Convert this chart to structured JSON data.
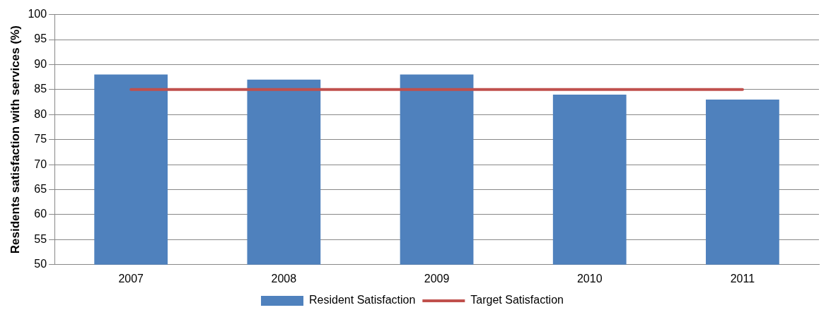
{
  "chart_data": {
    "type": "bar",
    "ylabel": "Residents satisfaction with services (%)",
    "categories": [
      "2007",
      "2008",
      "2009",
      "2010",
      "2011"
    ],
    "series": [
      {
        "name": "Resident Satisfaction",
        "color": "#4f81bd",
        "values": [
          88,
          87,
          88,
          84,
          83
        ]
      },
      {
        "name": "Target Satisfaction",
        "type": "line",
        "color": "#c0504d",
        "values": [
          85,
          85,
          85,
          85,
          85
        ]
      }
    ],
    "ylim": [
      50,
      100
    ],
    "yticks": [
      50,
      55,
      60,
      65,
      70,
      75,
      80,
      85,
      90,
      95,
      100
    ],
    "grid": "y",
    "legend": "bottom",
    "marker": "none"
  }
}
